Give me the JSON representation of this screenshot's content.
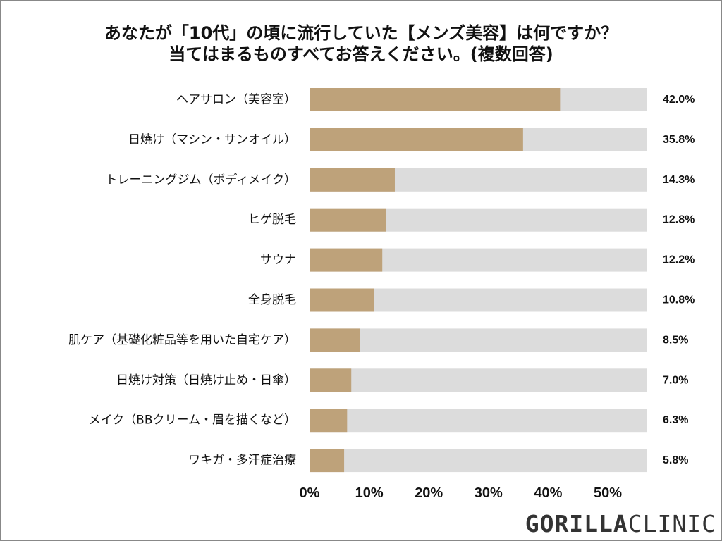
{
  "chart_data": {
    "type": "bar",
    "orientation": "horizontal",
    "title_lines": [
      "あなたが「10代」の頃に流行していた【メンズ美容】は何ですか？",
      "当てはまるものすべてお答えください。(複数回答)"
    ],
    "categories": [
      "ヘアサロン（美容室）",
      "日焼け（マシン・サンオイル）",
      "トレーニングジム（ボディメイク）",
      "ヒゲ脱毛",
      "サウナ",
      "全身脱毛",
      "肌ケア（基礎化粧品等を用いた自宅ケア）",
      "日焼け対策（日焼け止め・日傘）",
      "メイク（BBクリーム・眉を描くなど）",
      "ワキガ・多汗症治療"
    ],
    "values": [
      42.0,
      35.8,
      14.3,
      12.8,
      12.2,
      10.8,
      8.5,
      7.0,
      6.3,
      5.8
    ],
    "value_labels": [
      "42.0%",
      "35.8%",
      "14.3%",
      "12.8%",
      "12.2%",
      "10.8%",
      "8.5%",
      "7.0%",
      "6.3%",
      "5.8%"
    ],
    "xlim": [
      0,
      56.5
    ],
    "x_ticks": [
      0,
      10,
      20,
      30,
      40,
      50
    ],
    "x_tick_labels": [
      "0%",
      "10%",
      "20%",
      "30%",
      "40%",
      "50%"
    ],
    "bar_color": "#bea27a",
    "track_color": "#dcdcdc",
    "grid": false,
    "legend": "none"
  },
  "logo": {
    "bold": "GORILLA",
    "light": "CLINIC"
  }
}
